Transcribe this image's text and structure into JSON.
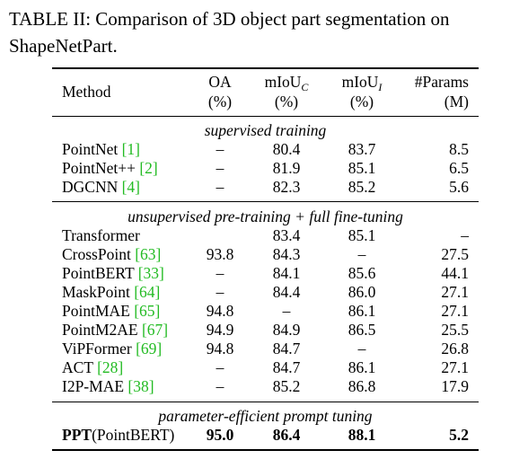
{
  "caption": {
    "label": "TABLE II:",
    "text": "Comparison of 3D object part segmentation on ShapeNetPart."
  },
  "header": {
    "method": "Method",
    "oa": "OA",
    "oa_unit": "(%)",
    "miouc": "mIoU",
    "miouc_sub": "C",
    "miouc_unit": "(%)",
    "mioui": "mIoU",
    "mioui_sub": "I",
    "mioui_unit": "(%)",
    "params": "#Params",
    "params_unit": "(M)"
  },
  "sections": [
    {
      "title": "supervised training",
      "rows": [
        {
          "name": "PointNet",
          "ref": "[1]",
          "oa": "–",
          "miouc": "80.4",
          "mioui": "83.7",
          "params": "8.5"
        },
        {
          "name": "PointNet++",
          "ref": "[2]",
          "oa": "–",
          "miouc": "81.9",
          "mioui": "85.1",
          "params": "6.5"
        },
        {
          "name": "DGCNN",
          "ref": "[4]",
          "oa": "–",
          "miouc": "82.3",
          "mioui": "85.2",
          "params": "5.6"
        }
      ]
    },
    {
      "title": "unsupervised pre-training + full fine-tuning",
      "rows": [
        {
          "name": "Transformer",
          "ref": "",
          "oa": "",
          "miouc": "83.4",
          "mioui": "85.1",
          "params": "–"
        },
        {
          "name": "CrossPoint",
          "ref": "[63]",
          "oa": "93.8",
          "miouc": "84.3",
          "mioui": "–",
          "params": "27.5"
        },
        {
          "name": "PointBERT",
          "ref": "[33]",
          "oa": "–",
          "miouc": "84.1",
          "mioui": "85.6",
          "params": "44.1"
        },
        {
          "name": "MaskPoint",
          "ref": "[64]",
          "oa": "–",
          "miouc": "84.4",
          "mioui": "86.0",
          "params": "27.1"
        },
        {
          "name": "PointMAE",
          "ref": "[65]",
          "oa": "94.8",
          "miouc": "–",
          "mioui": "86.1",
          "params": "27.1"
        },
        {
          "name": "PointM2AE",
          "ref": "[67]",
          "oa": "94.9",
          "miouc": "84.9",
          "mioui": "86.5",
          "params": "25.5"
        },
        {
          "name": "ViPFormer",
          "ref": "[69]",
          "oa": "94.8",
          "miouc": "84.7",
          "mioui": "–",
          "params": "26.8"
        },
        {
          "name": "ACT",
          "ref": "[28]",
          "oa": "–",
          "miouc": "84.7",
          "mioui": "86.1",
          "params": "27.1"
        },
        {
          "name": "I2P-MAE",
          "ref": "[38]",
          "oa": "–",
          "miouc": "85.2",
          "mioui": "86.8",
          "params": "17.9"
        }
      ]
    },
    {
      "title": "parameter-efficient prompt tuning",
      "rows": [
        {
          "name": "PPT",
          "suffix": "(PointBERT)",
          "ref": "",
          "oa": "95.0",
          "miouc": "86.4",
          "mioui": "88.1",
          "params": "5.2",
          "bold": true
        }
      ]
    }
  ]
}
